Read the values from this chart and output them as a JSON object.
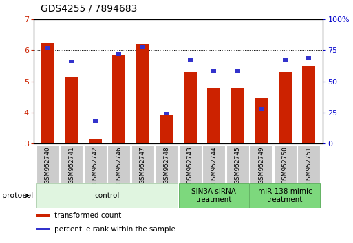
{
  "title": "GDS4255 / 7894683",
  "samples": [
    "GSM952740",
    "GSM952741",
    "GSM952742",
    "GSM952746",
    "GSM952747",
    "GSM952748",
    "GSM952743",
    "GSM952744",
    "GSM952745",
    "GSM952749",
    "GSM952750",
    "GSM952751"
  ],
  "transformed_count": [
    6.25,
    5.15,
    3.15,
    5.85,
    6.2,
    3.9,
    5.3,
    4.8,
    4.8,
    4.45,
    5.3,
    5.5
  ],
  "percentile_rank": [
    77,
    66,
    18,
    72,
    78,
    24,
    67,
    58,
    58,
    28,
    67,
    69
  ],
  "ylim_left": [
    3,
    7
  ],
  "ylim_right": [
    0,
    100
  ],
  "yticks_left": [
    3,
    4,
    5,
    6,
    7
  ],
  "yticks_right": [
    0,
    25,
    50,
    75,
    100
  ],
  "ytick_right_labels": [
    "0",
    "25",
    "50",
    "75",
    "100%"
  ],
  "bar_color_red": "#cc2200",
  "bar_color_blue": "#3333cc",
  "bar_width": 0.55,
  "blue_bar_width": 0.2,
  "blue_bar_height": 0.12,
  "groups": [
    {
      "label": "control",
      "start": 0,
      "end": 5,
      "color": "#e0f5e0",
      "border": "#aaccaa"
    },
    {
      "label": "SIN3A siRNA\ntreatment",
      "start": 6,
      "end": 8,
      "color": "#7dd87d",
      "border": "#55aa55"
    },
    {
      "label": "miR-138 mimic\ntreatment",
      "start": 9,
      "end": 11,
      "color": "#7dd87d",
      "border": "#55aa55"
    }
  ],
  "protocol_label": "protocol",
  "legend_items": [
    {
      "label": "transformed count",
      "color": "#cc2200"
    },
    {
      "label": "percentile rank within the sample",
      "color": "#3333cc"
    }
  ],
  "background_color": "#ffffff",
  "plot_bg": "#ffffff",
  "grid_color": "#000000",
  "tick_color_left": "#cc2200",
  "tick_color_right": "#0000cc",
  "sample_box_color": "#cccccc",
  "sample_box_border": "#aaaaaa",
  "title_fontsize": 10,
  "axis_fontsize": 8,
  "sample_fontsize": 6.5,
  "group_fontsize": 7.5,
  "legend_fontsize": 7.5
}
